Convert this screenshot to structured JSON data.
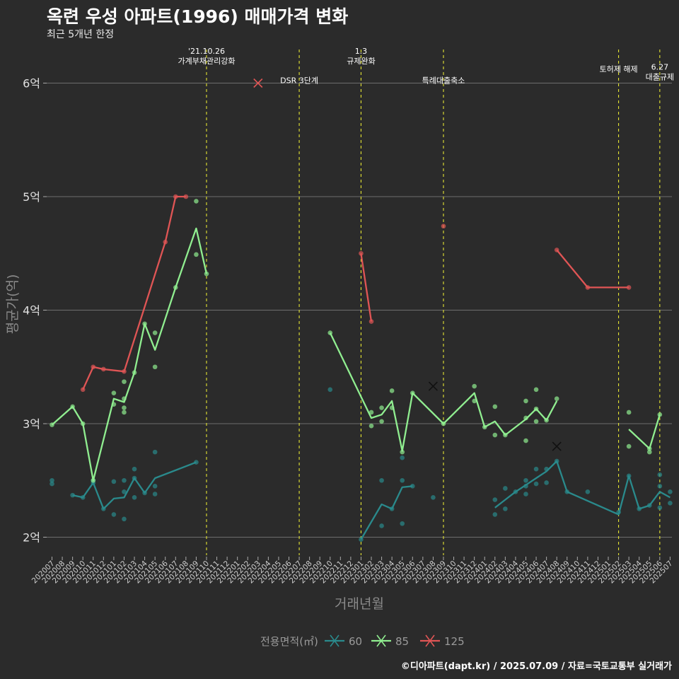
{
  "title": "옥련 우성 아파트(1996) 매매가격 변화",
  "subtitle": "최근 5개년 한정",
  "caption": "©디아파트(dapt.kr) / 2025.07.09 / 자료=국토교통부 실거래가",
  "chart_data": {
    "type": "line",
    "xlabel": "거래년월",
    "ylabel": "평균가(억)",
    "ylim": [
      1.75,
      6.3
    ],
    "yticks": [
      {
        "v": 2,
        "label": "2억"
      },
      {
        "v": 3,
        "label": "3억"
      },
      {
        "v": 4,
        "label": "4억"
      },
      {
        "v": 5,
        "label": "5억"
      },
      {
        "v": 6,
        "label": "6억"
      }
    ],
    "x_months": [
      "202007",
      "202008",
      "202009",
      "202010",
      "202011",
      "202012",
      "202101",
      "202102",
      "202103",
      "202104",
      "202105",
      "202106",
      "202107",
      "202108",
      "202109",
      "202110",
      "202111",
      "202112",
      "202201",
      "202202",
      "202203",
      "202204",
      "202205",
      "202206",
      "202207",
      "202208",
      "202209",
      "202210",
      "202211",
      "202212",
      "202301",
      "202302",
      "202303",
      "202304",
      "202305",
      "202306",
      "202307",
      "202308",
      "202309",
      "202310",
      "202311",
      "202312",
      "202401",
      "202402",
      "202403",
      "202404",
      "202405",
      "202406",
      "202407",
      "202408",
      "202409",
      "202410",
      "202411",
      "202412",
      "202501",
      "202502",
      "202503",
      "202504",
      "202505",
      "202506",
      "202507"
    ],
    "legend_title": "전용면적(㎡)",
    "series": [
      {
        "name": "60",
        "color": "#2a8a8c",
        "line": [
          [
            0,
            null
          ],
          [
            2,
            2.37
          ],
          [
            3,
            2.35
          ],
          [
            4,
            2.48
          ],
          [
            5,
            2.25
          ],
          [
            6,
            2.34
          ],
          [
            7,
            2.35
          ],
          [
            8,
            2.52
          ],
          [
            9,
            2.39
          ],
          [
            10,
            2.52
          ],
          [
            14,
            2.66
          ],
          [
            30,
            1.98
          ],
          [
            32,
            2.29
          ],
          [
            33,
            2.25
          ],
          [
            34,
            2.44
          ],
          [
            35,
            2.45
          ],
          [
            43,
            2.26
          ],
          [
            44,
            2.33
          ],
          [
            45,
            2.4
          ],
          [
            46,
            2.46
          ],
          [
            47,
            2.52
          ],
          [
            48,
            2.58
          ],
          [
            49,
            2.67
          ],
          [
            50,
            2.4
          ],
          [
            55,
            2.2
          ],
          [
            56,
            2.54
          ],
          [
            57,
            2.25
          ],
          [
            58,
            2.28
          ],
          [
            59,
            2.4
          ],
          [
            60,
            2.35
          ]
        ],
        "points": [
          [
            0,
            2.5
          ],
          [
            0,
            2.47
          ],
          [
            2,
            2.37
          ],
          [
            3,
            2.35
          ],
          [
            4,
            2.48
          ],
          [
            4,
            2.5
          ],
          [
            5,
            2.25
          ],
          [
            6,
            2.49
          ],
          [
            6,
            2.2
          ],
          [
            7,
            2.5
          ],
          [
            7,
            2.4
          ],
          [
            7,
            2.16
          ],
          [
            8,
            2.6
          ],
          [
            8,
            2.52
          ],
          [
            8,
            2.35
          ],
          [
            9,
            2.39
          ],
          [
            10,
            2.75
          ],
          [
            10,
            2.45
          ],
          [
            10,
            2.38
          ],
          [
            14,
            2.66
          ],
          [
            27,
            3.3
          ],
          [
            30,
            1.98
          ],
          [
            32,
            2.5
          ],
          [
            32,
            2.1
          ],
          [
            33,
            2.25
          ],
          [
            34,
            2.7
          ],
          [
            34,
            2.5
          ],
          [
            34,
            2.12
          ],
          [
            35,
            2.45
          ],
          [
            37,
            2.35
          ],
          [
            43,
            2.33
          ],
          [
            43,
            2.2
          ],
          [
            44,
            2.43
          ],
          [
            44,
            2.25
          ],
          [
            45,
            2.4
          ],
          [
            46,
            2.5
          ],
          [
            46,
            2.45
          ],
          [
            46,
            2.38
          ],
          [
            47,
            2.6
          ],
          [
            47,
            2.47
          ],
          [
            48,
            2.6
          ],
          [
            48,
            2.48
          ],
          [
            49,
            2.67
          ],
          [
            50,
            2.4
          ],
          [
            52,
            2.4
          ],
          [
            55,
            2.22
          ],
          [
            56,
            2.54
          ],
          [
            57,
            2.25
          ],
          [
            58,
            2.28
          ],
          [
            59,
            2.55
          ],
          [
            59,
            2.45
          ],
          [
            59,
            2.26
          ],
          [
            60,
            2.4
          ],
          [
            60,
            2.3
          ]
        ],
        "marker_x": [
          [
            49,
            2.8
          ]
        ]
      },
      {
        "name": "85",
        "color": "#90ee90",
        "line": [
          [
            0,
            2.99
          ],
          [
            2,
            3.15
          ],
          [
            3,
            3.0
          ],
          [
            4,
            2.5
          ],
          [
            6,
            3.22
          ],
          [
            7,
            3.19
          ],
          [
            8,
            3.45
          ],
          [
            9,
            3.88
          ],
          [
            10,
            3.65
          ],
          [
            12,
            4.2
          ],
          [
            14,
            4.72
          ],
          [
            15,
            4.32
          ],
          [
            27,
            3.8
          ],
          [
            31,
            3.05
          ],
          [
            32,
            3.08
          ],
          [
            33,
            3.2
          ],
          [
            34,
            2.76
          ],
          [
            35,
            3.27
          ],
          [
            38,
            3.0
          ],
          [
            41,
            3.27
          ],
          [
            42,
            2.97
          ],
          [
            43,
            3.02
          ],
          [
            44,
            2.9
          ],
          [
            46,
            3.04
          ],
          [
            47,
            3.13
          ],
          [
            48,
            3.03
          ],
          [
            49,
            3.2
          ],
          [
            56,
            2.95
          ],
          [
            58,
            2.78
          ],
          [
            59,
            3.08
          ]
        ],
        "points": [
          [
            0,
            2.99
          ],
          [
            2,
            3.15
          ],
          [
            3,
            3.0
          ],
          [
            4,
            2.5
          ],
          [
            6,
            3.27
          ],
          [
            6,
            3.17
          ],
          [
            7,
            3.37
          ],
          [
            7,
            3.22
          ],
          [
            7,
            3.14
          ],
          [
            7,
            3.1
          ],
          [
            8,
            3.45
          ],
          [
            9,
            3.88
          ],
          [
            10,
            3.8
          ],
          [
            10,
            3.5
          ],
          [
            12,
            4.2
          ],
          [
            14,
            4.96
          ],
          [
            14,
            4.49
          ],
          [
            15,
            4.32
          ],
          [
            27,
            3.8
          ],
          [
            31,
            3.1
          ],
          [
            31,
            2.98
          ],
          [
            32,
            3.14
          ],
          [
            32,
            3.02
          ],
          [
            33,
            3.29
          ],
          [
            33,
            3.14
          ],
          [
            34,
            2.75
          ],
          [
            35,
            3.27
          ],
          [
            38,
            3.0
          ],
          [
            41,
            3.33
          ],
          [
            41,
            3.2
          ],
          [
            42,
            2.97
          ],
          [
            43,
            3.15
          ],
          [
            43,
            2.9
          ],
          [
            44,
            2.9
          ],
          [
            46,
            3.2
          ],
          [
            46,
            3.05
          ],
          [
            46,
            2.85
          ],
          [
            47,
            3.3
          ],
          [
            47,
            3.13
          ],
          [
            47,
            3.02
          ],
          [
            48,
            3.03
          ],
          [
            49,
            3.22
          ],
          [
            56,
            3.1
          ],
          [
            56,
            2.8
          ],
          [
            58,
            2.78
          ],
          [
            58,
            2.75
          ],
          [
            59,
            3.08
          ]
        ],
        "marker_x": [
          [
            37,
            3.33
          ]
        ]
      },
      {
        "name": "125",
        "color": "#e05555",
        "line": [
          [
            3,
            3.3
          ],
          [
            4,
            3.5
          ],
          [
            5,
            3.48
          ],
          [
            7,
            3.46
          ],
          [
            11,
            4.6
          ],
          [
            12,
            5.0
          ],
          [
            13,
            5.0
          ],
          [
            20,
            6.0
          ],
          [
            30,
            4.5
          ],
          [
            31,
            3.9
          ],
          [
            38,
            4.74
          ],
          [
            49,
            4.53
          ],
          [
            52,
            4.2
          ],
          [
            56,
            4.2
          ]
        ],
        "points": [
          [
            3,
            3.3
          ],
          [
            4,
            3.5
          ],
          [
            5,
            3.48
          ],
          [
            7,
            3.46
          ],
          [
            11,
            4.6
          ],
          [
            12,
            5.0
          ],
          [
            13,
            5.0
          ],
          [
            30,
            4.5
          ],
          [
            31,
            3.9
          ],
          [
            38,
            4.74
          ],
          [
            49,
            4.53
          ],
          [
            52,
            4.2
          ],
          [
            56,
            4.2
          ]
        ],
        "marker_x": [
          [
            20,
            6.0
          ]
        ]
      }
    ],
    "events": [
      {
        "x": 15,
        "lines": [
          "'21.10.26",
          "가계부채관리강화"
        ],
        "ty": 6.17
      },
      {
        "x": 24,
        "lines": [
          "DSR 3단계"
        ],
        "ty": 6.0
      },
      {
        "x": 30,
        "lines": [
          "1.3",
          "규제완화"
        ],
        "ty": 6.17
      },
      {
        "x": 38,
        "lines": [
          "특례대출축소"
        ],
        "ty": 6.0
      },
      {
        "x": 55,
        "lines": [
          "토허제 해제"
        ],
        "ty": 6.1
      },
      {
        "x": 59,
        "lines": [
          "6.27",
          "대출규제"
        ],
        "ty": 6.03
      }
    ]
  }
}
